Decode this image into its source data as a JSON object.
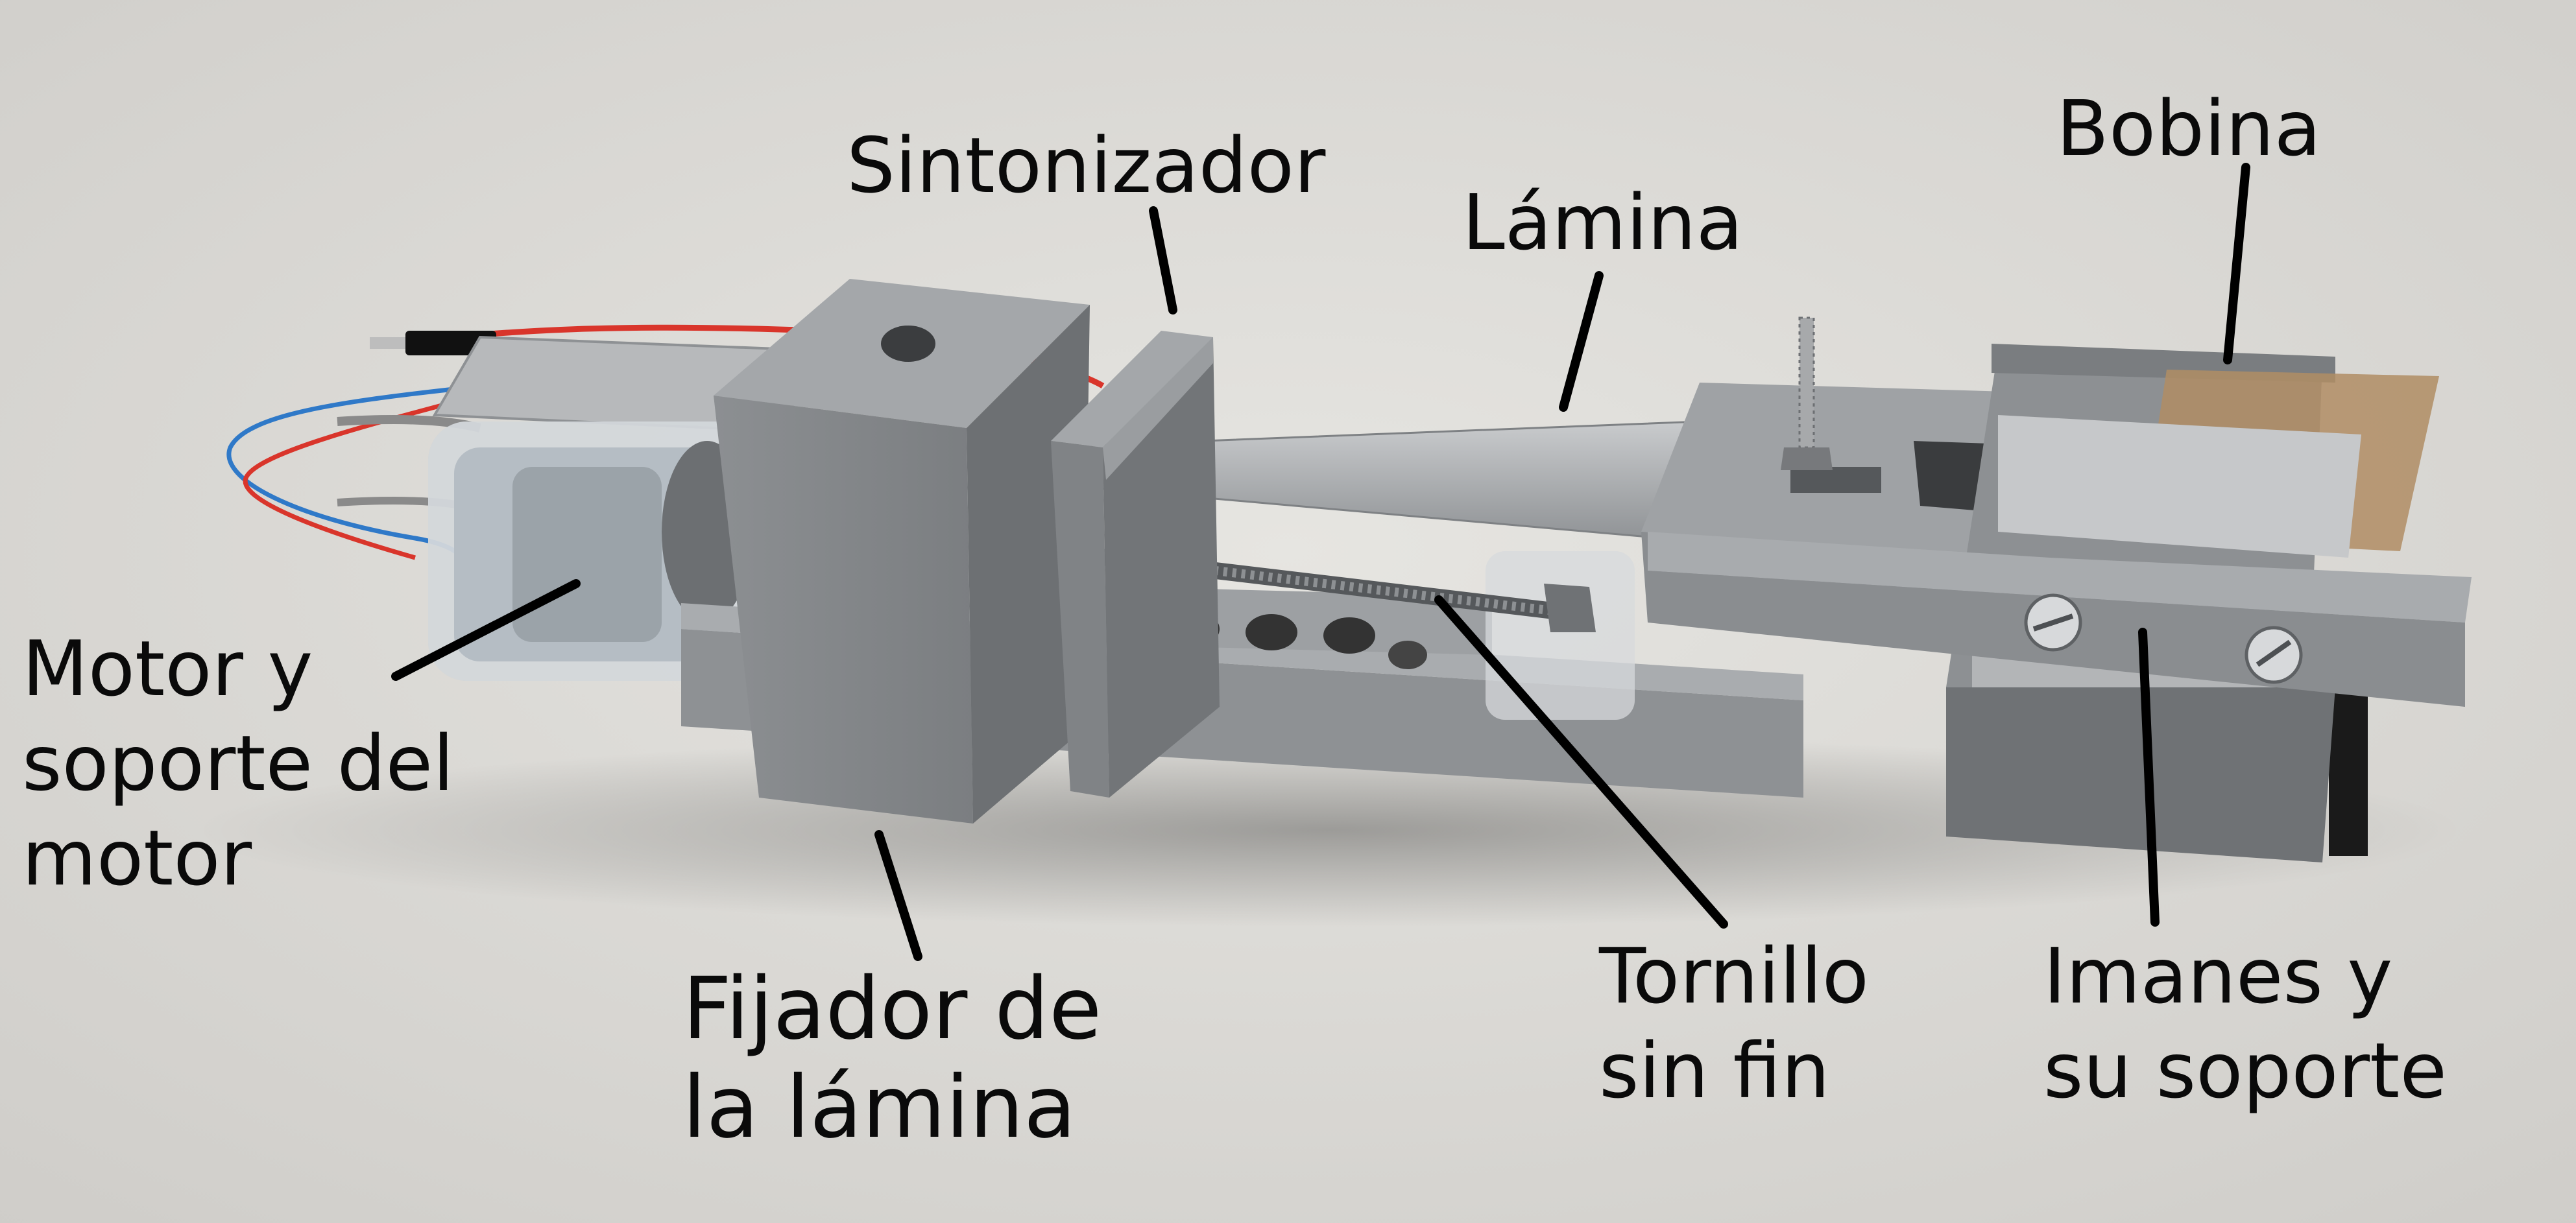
{
  "figure": {
    "labels": {
      "sintonizador": [
        "Sintonizador"
      ],
      "lamina": [
        "Lámina"
      ],
      "bobina": [
        "Bobina"
      ],
      "motor": [
        "Motor y",
        "soporte del",
        "motor"
      ],
      "fijador": [
        "Fijador de",
        "la lámina"
      ],
      "tornillo": [
        "Tornillo",
        "sin fin"
      ],
      "imanes": [
        "Imanes y",
        "su soporte"
      ]
    }
  }
}
